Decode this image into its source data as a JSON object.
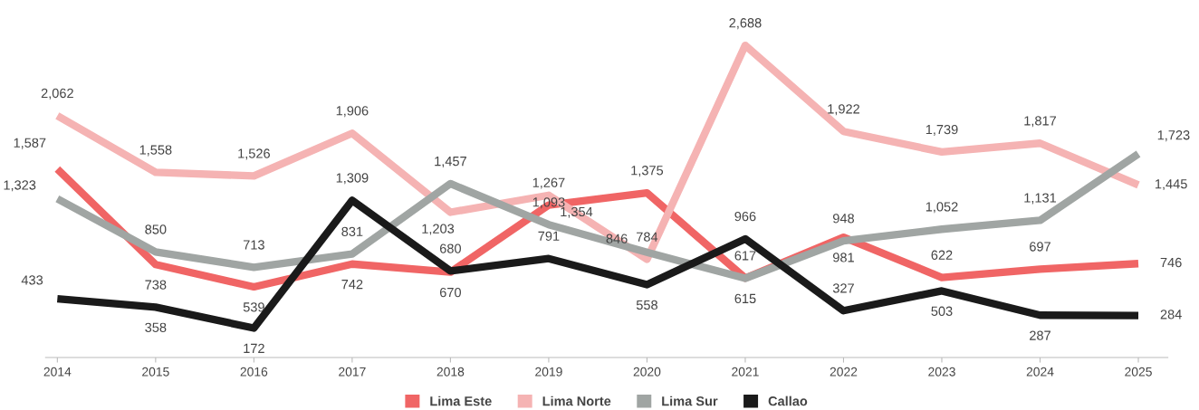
{
  "chart_data": {
    "type": "line",
    "categories": [
      "2014",
      "2015",
      "2016",
      "2017",
      "2018",
      "2019",
      "2020",
      "2021",
      "2022",
      "2023",
      "2024",
      "2025"
    ],
    "series": [
      {
        "name": "Lima Este",
        "color": "#f06565",
        "values": [
          1587,
          738,
          539,
          742,
          670,
          1267,
          1375,
          617,
          981,
          622,
          697,
          746
        ],
        "value_labels": [
          "1,587",
          "738",
          "539",
          "742",
          "670",
          "1,267",
          "1,375",
          "617",
          "981",
          "622",
          "697",
          "746"
        ]
      },
      {
        "name": "Lima Norte",
        "color": "#f5b3b3",
        "values": [
          2062,
          1558,
          1526,
          1906,
          1203,
          1354,
          784,
          2688,
          1922,
          1739,
          1817,
          1445
        ],
        "value_labels": [
          "2,062",
          "1,558",
          "1,526",
          "1,906",
          "1,203",
          "1,354",
          "784",
          "2,688",
          "1,922",
          "1,739",
          "1,817",
          "1,445"
        ]
      },
      {
        "name": "Lima Sur",
        "color": "#a0a5a3",
        "values": [
          1323,
          850,
          713,
          831,
          1457,
          1093,
          846,
          615,
          948,
          1052,
          1131,
          1723
        ],
        "value_labels": [
          "1,323",
          "850",
          "713",
          "831",
          "1,457",
          "1,093",
          "846",
          "615",
          "948",
          "1,052",
          "1,131",
          "1,723"
        ]
      },
      {
        "name": "Callao",
        "color": "#1a1a1a",
        "values": [
          433,
          358,
          172,
          1309,
          680,
          791,
          558,
          966,
          327,
          503,
          287,
          284
        ],
        "value_labels": [
          "433",
          "358",
          "172",
          "1,309",
          "680",
          "791",
          "558",
          "966",
          "327",
          "503",
          "287",
          "284"
        ]
      }
    ],
    "tick_labels": "x",
    "legend": "bottom",
    "grid": false,
    "marker": "none",
    "line_style": "solid"
  }
}
